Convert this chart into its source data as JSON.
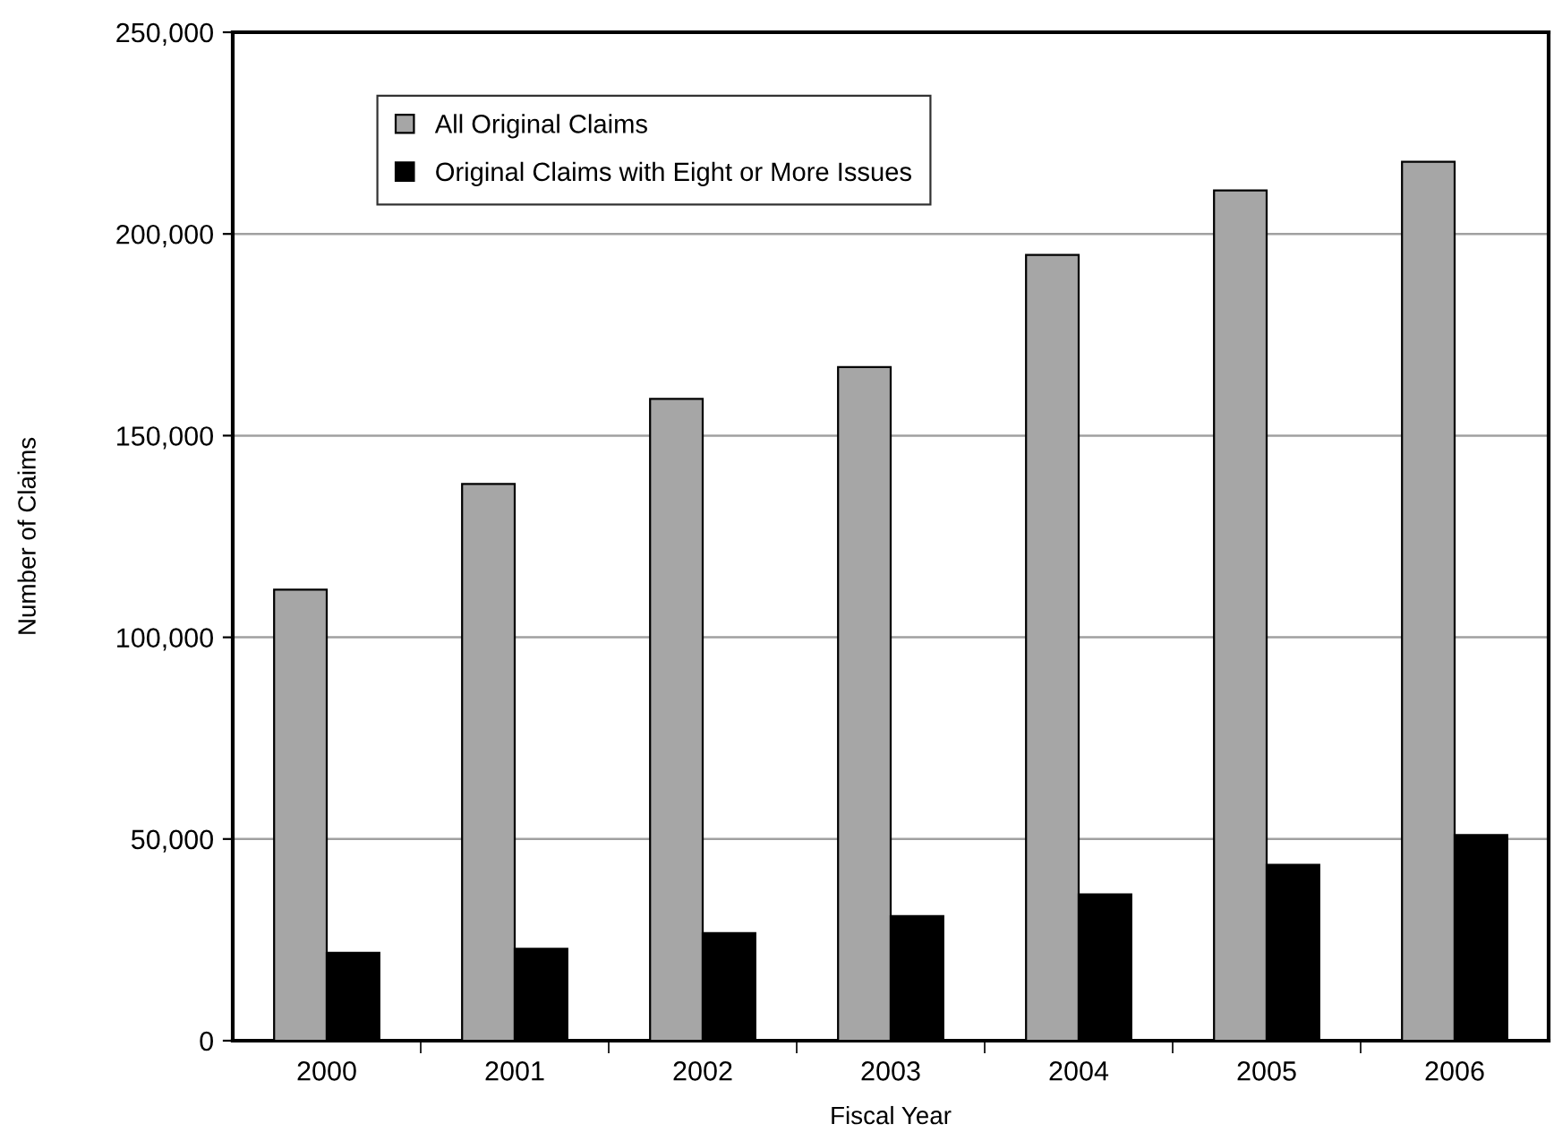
{
  "chart_data": {
    "type": "bar",
    "xlabel": "Fiscal Year",
    "ylabel": "Number of Claims",
    "categories": [
      "2000",
      "2001",
      "2002",
      "2003",
      "2004",
      "2005",
      "2006"
    ],
    "series": [
      {
        "name": "All Original Claims",
        "color": "#a6a6a6",
        "values": [
          111800,
          138000,
          159100,
          167000,
          194800,
          210800,
          217900
        ]
      },
      {
        "name": "Original Claims with Eight or More Issues",
        "color": "#000000",
        "values": [
          21800,
          22800,
          26700,
          30900,
          36300,
          43600,
          51000
        ]
      }
    ],
    "ylim": [
      0,
      250000
    ],
    "yticks": [
      {
        "value": 0,
        "label": "0"
      },
      {
        "value": 50000,
        "label": "50,000"
      },
      {
        "value": 100000,
        "label": "100,000"
      },
      {
        "value": 150000,
        "label": "150,000"
      },
      {
        "value": 200000,
        "label": "200,000"
      },
      {
        "value": 250000,
        "label": "250,000"
      }
    ],
    "grid": "y",
    "legend": "top left"
  }
}
